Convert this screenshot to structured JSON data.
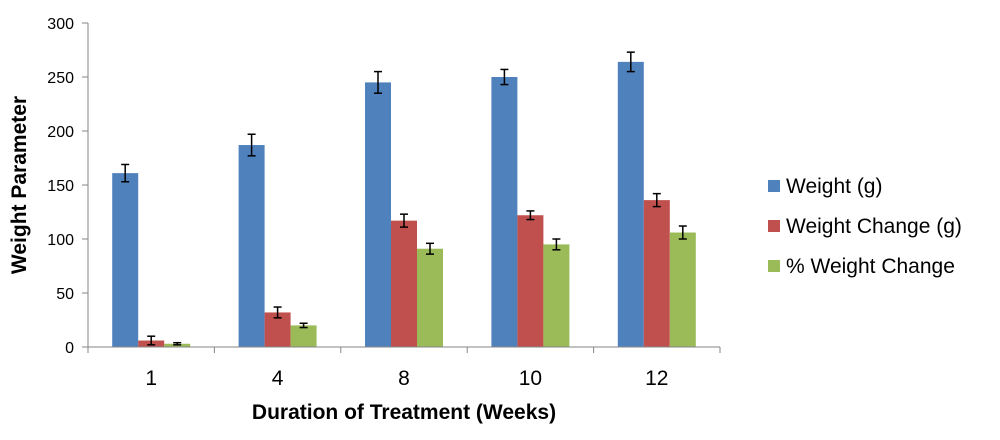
{
  "chart_data": {
    "type": "bar",
    "title": "",
    "xlabel": "Duration of Treatment (Weeks)",
    "ylabel": "Weight Parameter",
    "ylim": [
      0,
      300
    ],
    "yticks": [
      0,
      50,
      100,
      150,
      200,
      250,
      300
    ],
    "categories": [
      "1",
      "4",
      "8",
      "10",
      "12"
    ],
    "grid": false,
    "legend_position": "right",
    "series": [
      {
        "name": "Weight (g)",
        "color": "#4F81BD",
        "values": [
          161,
          187,
          245,
          250,
          264
        ],
        "errors": [
          8,
          10,
          10,
          7,
          9
        ]
      },
      {
        "name": "Weight Change (g)",
        "color": "#C0504D",
        "values": [
          6,
          32,
          117,
          122,
          136
        ],
        "errors": [
          4,
          5,
          6,
          4,
          6
        ]
      },
      {
        "name": "% Weight Change",
        "color": "#9BBB59",
        "values": [
          3,
          20,
          91,
          95,
          106
        ],
        "errors": [
          1,
          2,
          5,
          5,
          6
        ]
      }
    ]
  }
}
